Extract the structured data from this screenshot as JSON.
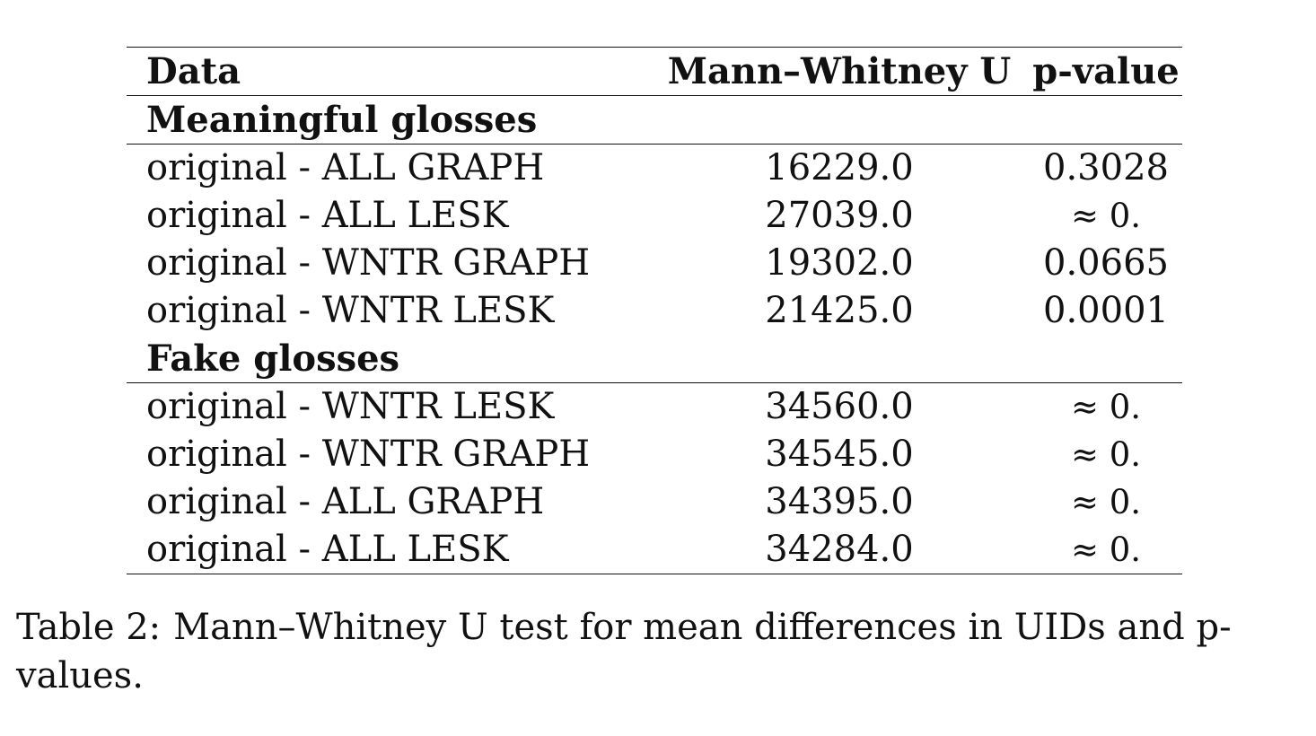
{
  "table": {
    "headers": [
      "Data",
      "Mann–Whitney U",
      "p-value"
    ],
    "groups": [
      {
        "title": "Meaningful glosses",
        "rows": [
          {
            "data": "original - ALL GRAPH",
            "u": "16229.0",
            "p": "0.3028"
          },
          {
            "data": "original - ALL LESK",
            "u": "27039.0",
            "p": "≈ 0."
          },
          {
            "data": "original - WNTR GRAPH",
            "u": "19302.0",
            "p": "0.0665"
          },
          {
            "data": "original - WNTR LESK",
            "u": "21425.0",
            "p": "0.0001"
          }
        ]
      },
      {
        "title": "Fake glosses",
        "rows": [
          {
            "data": "original - WNTR LESK",
            "u": "34560.0",
            "p": "≈ 0."
          },
          {
            "data": "original - WNTR GRAPH",
            "u": "34545.0",
            "p": "≈ 0."
          },
          {
            "data": "original - ALL GRAPH",
            "u": "34395.0",
            "p": "≈ 0."
          },
          {
            "data": "original - ALL LESK",
            "u": "34284.0",
            "p": "≈ 0."
          }
        ]
      }
    ]
  },
  "caption": {
    "label": "Table 2:",
    "text": "Mann–Whitney U test for mean differences in UIDs and p-values."
  }
}
